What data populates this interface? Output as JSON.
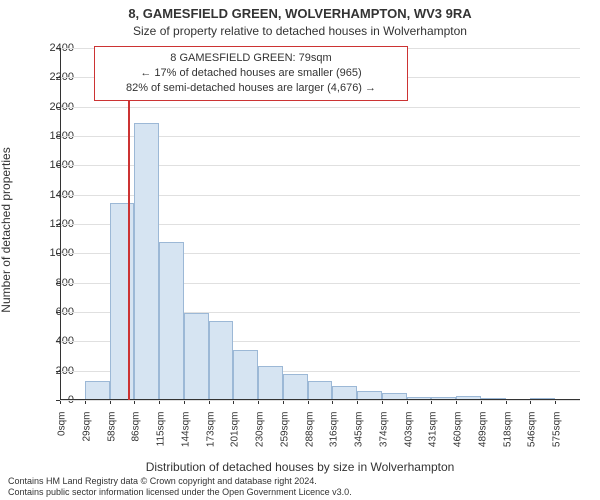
{
  "title_line1": "8, GAMESFIELD GREEN, WOLVERHAMPTON, WV3 9RA",
  "title_line2": "Size of property relative to detached houses in Wolverhampton",
  "annotation": {
    "line1": "8 GAMESFIELD GREEN: 79sqm",
    "line2": "← 17% of detached houses are smaller (965)",
    "line3": "82% of semi-detached houses are larger (4,676) →",
    "border_color": "#cc3333"
  },
  "y_axis": {
    "label": "Number of detached properties",
    "min": 0,
    "max": 2400,
    "tick_step": 200,
    "ticks": [
      0,
      200,
      400,
      600,
      800,
      1000,
      1200,
      1400,
      1600,
      1800,
      2000,
      2200,
      2400
    ]
  },
  "x_axis": {
    "title": "Distribution of detached houses by size in Wolverhampton",
    "ticks": [
      "0sqm",
      "29sqm",
      "58sqm",
      "86sqm",
      "115sqm",
      "144sqm",
      "173sqm",
      "201sqm",
      "230sqm",
      "259sqm",
      "288sqm",
      "316sqm",
      "345sqm",
      "374sqm",
      "403sqm",
      "431sqm",
      "460sqm",
      "489sqm",
      "518sqm",
      "546sqm",
      "575sqm"
    ]
  },
  "chart": {
    "type": "histogram",
    "bar_fill": "#d6e4f2",
    "bar_stroke": "#9cb8d6",
    "background": "#ffffff",
    "grid_color": "#e0e0e0",
    "marker_color": "#cc3333",
    "marker_value_sqm": 79,
    "x_max_sqm": 600,
    "values": [
      0,
      130,
      1345,
      1890,
      1080,
      590,
      540,
      340,
      230,
      175,
      130,
      95,
      60,
      45,
      20,
      20,
      25,
      10,
      0,
      10,
      0
    ]
  },
  "footer": {
    "line1": "Contains HM Land Registry data © Crown copyright and database right 2024.",
    "line2": "Contains public sector information licensed under the Open Government Licence v3.0."
  },
  "style": {
    "title_fontsize": 13,
    "subtitle_fontsize": 12,
    "annotation_fontsize": 11,
    "axis_label_fontsize": 12,
    "tick_fontsize": 11,
    "x_tick_fontsize": 10,
    "footer_fontsize": 9,
    "text_color": "#333333"
  }
}
